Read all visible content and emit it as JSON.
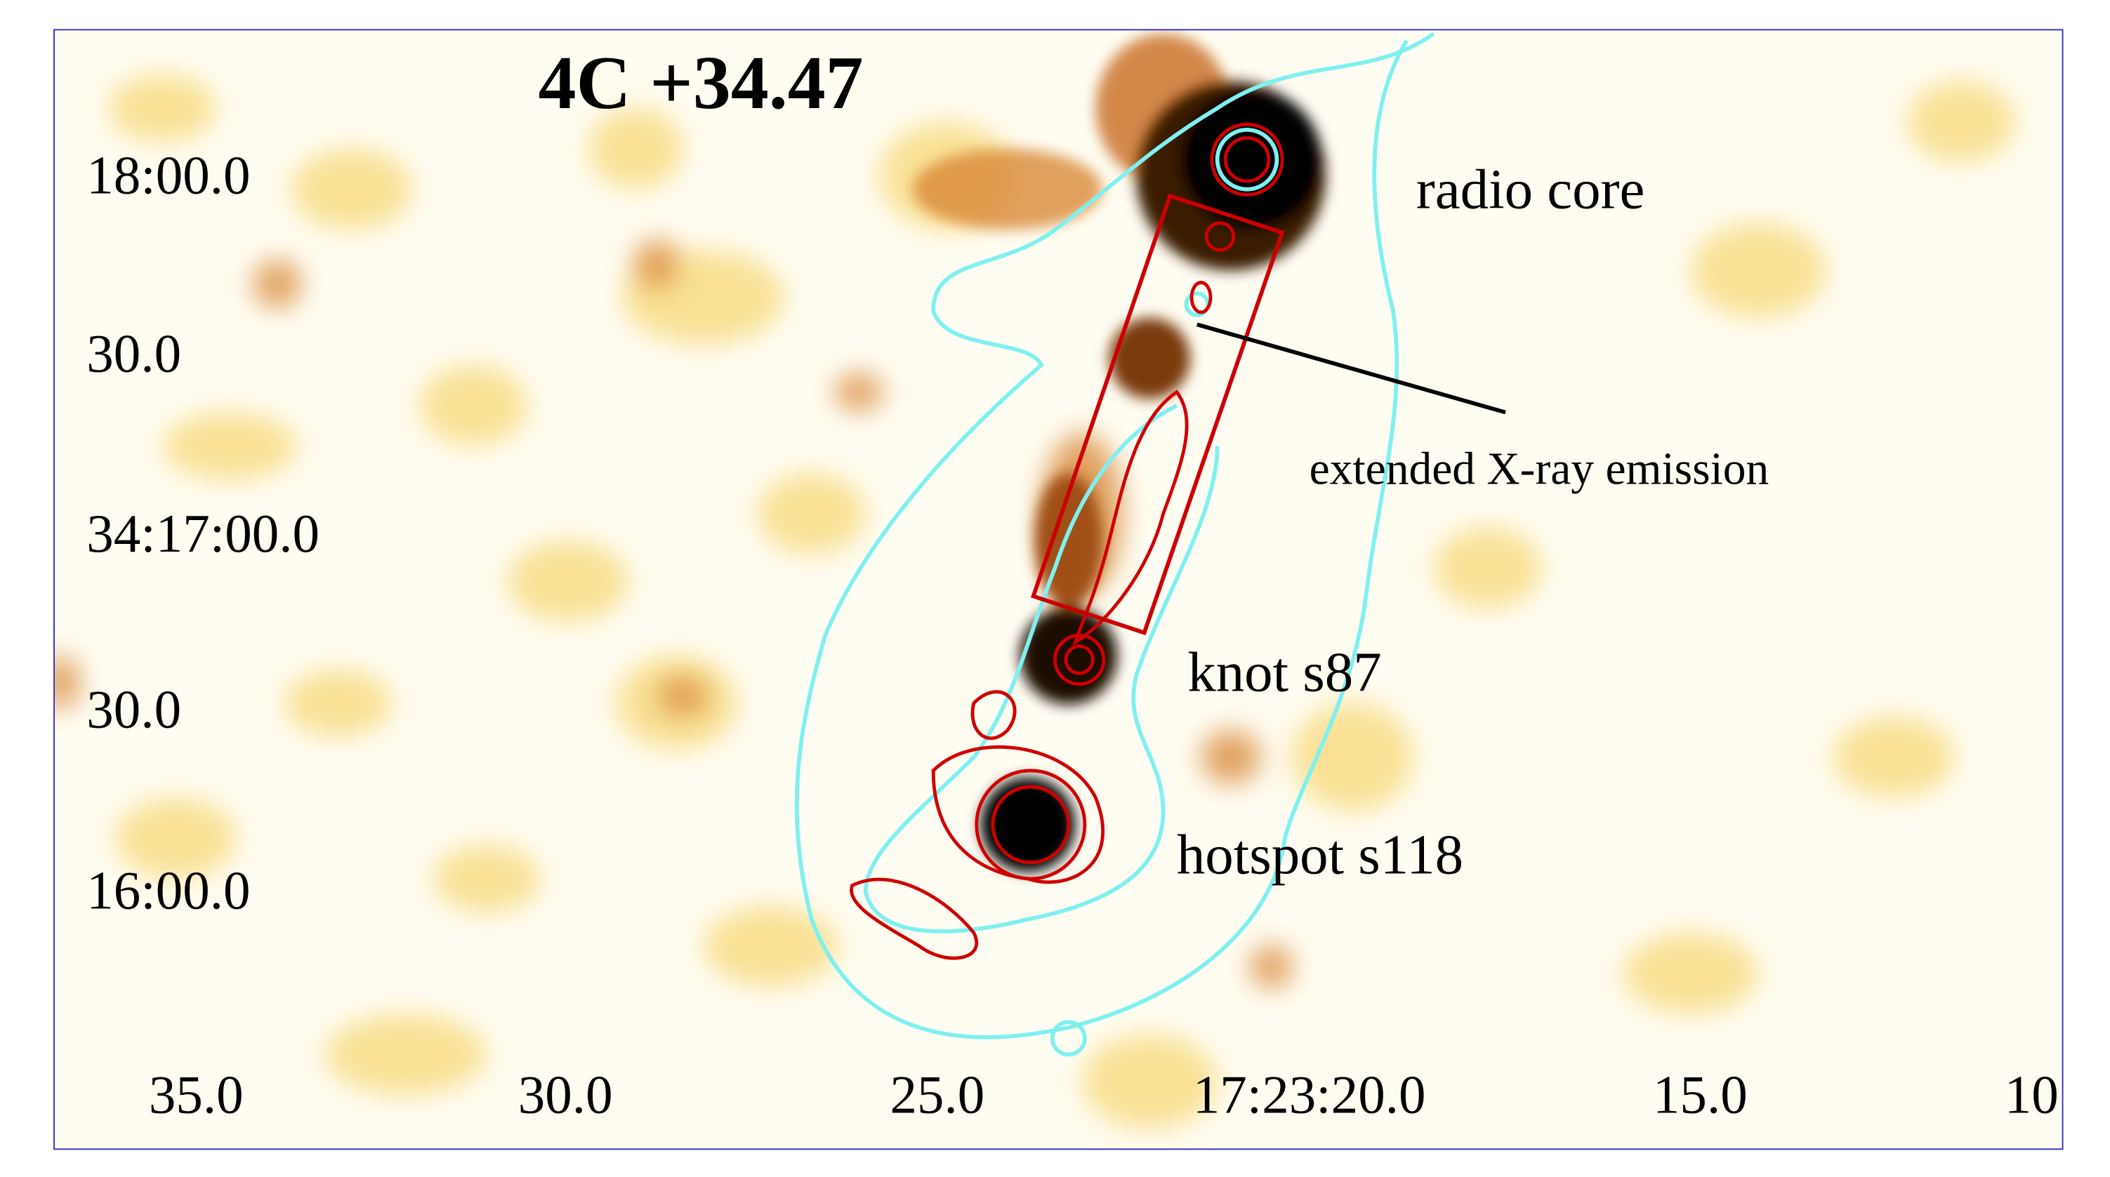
{
  "title": "4C +34.47",
  "annotations": {
    "radio_core": "radio core",
    "extended": "extended X-ray emission",
    "knot": "knot s87",
    "hotspot": "hotspot s118"
  },
  "y_axis_labels": [
    "18:00.0",
    "30.0",
    "34:17:00.0",
    "30.0",
    "16:00.0"
  ],
  "x_axis_labels": [
    "35.0",
    "30.0",
    "25.0",
    "17:23:20.0",
    "15.0",
    "10"
  ]
}
